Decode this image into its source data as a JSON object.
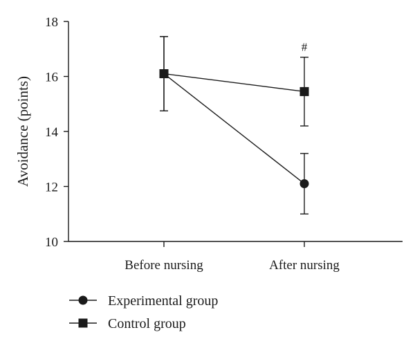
{
  "chart_data": {
    "type": "line",
    "categories": [
      "Before nursing",
      "After nursing"
    ],
    "ylabel": "Avoidance (points)",
    "xlabel": "",
    "ylim": [
      10,
      18
    ],
    "yticks": [
      10,
      12,
      14,
      16,
      18
    ],
    "grid": false,
    "legend_position": "bottom-left",
    "series": [
      {
        "name": "Experimental group",
        "marker": "circle",
        "values": [
          16.1,
          12.1
        ],
        "error": [
          1.35,
          1.1
        ],
        "color": "#1a1a1a"
      },
      {
        "name": "Control group",
        "marker": "square",
        "values": [
          16.1,
          15.45
        ],
        "error": [
          1.35,
          1.25
        ],
        "color": "#1a1a1a"
      }
    ],
    "annotations": [
      {
        "category": "After nursing",
        "text": "#",
        "y": 16.7
      }
    ]
  }
}
